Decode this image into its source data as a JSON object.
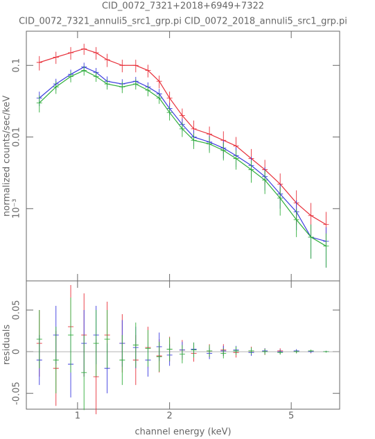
{
  "chart_data": [
    {
      "type": "scatter",
      "title": "CID_0072_7321+2018+6949+7322",
      "subtitle": "CID_0072_7321_annuli5_src1_grp.pi CID_0072_2018_annuli5_src1_grp.pi",
      "ylabel": "normalized counts/sec/keV",
      "xlog": true,
      "ylog": true,
      "xlim": [
        0.68,
        7.2
      ],
      "ylim": [
        9.8e-05,
        0.3
      ],
      "yticks": [
        0.1,
        0.01,
        {
          "value": 0.001,
          "label": "10⁻³"
        }
      ],
      "x": [
        0.75,
        0.85,
        0.95,
        1.05,
        1.15,
        1.25,
        1.4,
        1.55,
        1.7,
        1.85,
        2.0,
        2.2,
        2.4,
        2.7,
        3.0,
        3.3,
        3.7,
        4.1,
        4.6,
        5.2,
        5.8,
        6.5
      ],
      "series": [
        {
          "color": "#e8303a",
          "values": [
            0.11,
            0.13,
            0.15,
            0.17,
            0.15,
            0.12,
            0.1,
            0.1,
            0.085,
            0.06,
            0.035,
            0.02,
            0.013,
            0.011,
            0.009,
            0.0075,
            0.005,
            0.0035,
            0.0022,
            0.0012,
            0.0008,
            0.0006
          ],
          "errors": [
            0.025,
            0.025,
            0.03,
            0.03,
            0.03,
            0.025,
            0.02,
            0.02,
            0.017,
            0.012,
            0.008,
            0.005,
            0.004,
            0.003,
            0.003,
            0.0025,
            0.0018,
            0.0013,
            0.0009,
            0.0006,
            0.0004,
            0.0003
          ]
        },
        {
          "color": "#3a3adf",
          "values": [
            0.035,
            0.055,
            0.075,
            0.095,
            0.08,
            0.06,
            0.055,
            0.06,
            0.05,
            0.04,
            0.025,
            0.015,
            0.01,
            0.0085,
            0.007,
            0.0055,
            0.004,
            0.0028,
            0.0016,
            0.0009,
            0.0004,
            0.00035
          ],
          "errors": [
            0.008,
            0.01,
            0.012,
            0.014,
            0.012,
            0.01,
            0.009,
            0.009,
            0.008,
            0.007,
            0.005,
            0.003,
            0.0025,
            0.002,
            0.002,
            0.0017,
            0.0013,
            0.001,
            0.0006,
            0.0004,
            0.0002,
            0.0002
          ]
        },
        {
          "color": "#2fae3a",
          "values": [
            0.03,
            0.05,
            0.07,
            0.085,
            0.07,
            0.055,
            0.05,
            0.055,
            0.045,
            0.035,
            0.022,
            0.013,
            0.009,
            0.008,
            0.0065,
            0.005,
            0.0035,
            0.0025,
            0.0014,
            0.0007,
            0.0004,
            0.0003
          ],
          "errors": [
            0.008,
            0.01,
            0.012,
            0.013,
            0.011,
            0.009,
            0.009,
            0.009,
            0.008,
            0.006,
            0.005,
            0.003,
            0.0022,
            0.002,
            0.0018,
            0.0015,
            0.0012,
            0.0009,
            0.0006,
            0.0003,
            0.0002,
            0.00015
          ]
        }
      ]
    },
    {
      "type": "scatter",
      "ylabel": "residuals",
      "xlabel": "channel energy (keV)",
      "xlog": true,
      "ylog": false,
      "xlim": [
        0.68,
        7.2
      ],
      "ylim": [
        -0.069,
        0.085
      ],
      "xticks": [
        1,
        2,
        5
      ],
      "yticks": [
        0.05,
        0,
        -0.05
      ],
      "x": [
        0.75,
        0.85,
        0.95,
        1.05,
        1.15,
        1.25,
        1.4,
        1.55,
        1.7,
        1.85,
        2.0,
        2.2,
        2.4,
        2.7,
        3.0,
        3.3,
        3.7,
        4.1,
        4.6,
        5.2,
        5.8,
        6.5
      ],
      "series": [
        {
          "color": "#e8303a",
          "values": [
            0.01,
            -0.02,
            0.03,
            0.02,
            -0.03,
            0.02,
            0.01,
            -0.01,
            0.005,
            -0.005,
            0.003,
            0.002,
            -0.002,
            0.001,
            0.002,
            -0.001,
            0.001,
            0,
            0.001,
            0,
            0,
            0
          ],
          "errors": [
            0.04,
            0.045,
            0.05,
            0.05,
            0.045,
            0.04,
            0.035,
            0.03,
            0.025,
            0.02,
            0.015,
            0.012,
            0.01,
            0.008,
            0.007,
            0.006,
            0.005,
            0.004,
            0.003,
            0.002,
            0.002,
            0.001
          ]
        },
        {
          "color": "#3a3adf",
          "values": [
            -0.01,
            0.02,
            -0.015,
            0.01,
            0.02,
            -0.02,
            0.01,
            0.005,
            -0.01,
            0.006,
            -0.004,
            0.002,
            0.003,
            -0.002,
            0.001,
            0.002,
            -0.001,
            0.001,
            0,
            0.001,
            0,
            0
          ],
          "errors": [
            0.03,
            0.035,
            0.04,
            0.04,
            0.035,
            0.03,
            0.028,
            0.025,
            0.02,
            0.017,
            0.013,
            0.01,
            0.008,
            0.007,
            0.006,
            0.005,
            0.004,
            0.003,
            0.0025,
            0.002,
            0.0015,
            0.001
          ]
        },
        {
          "color": "#2fae3a",
          "values": [
            0.015,
            -0.01,
            0.02,
            -0.025,
            0.01,
            0.015,
            -0.01,
            0.008,
            0.004,
            -0.006,
            0.003,
            -0.003,
            0.002,
            0.001,
            -0.002,
            0.001,
            0.001,
            0,
            -0.001,
            0,
            0.001,
            0
          ],
          "errors": [
            0.035,
            0.04,
            0.045,
            0.045,
            0.04,
            0.035,
            0.03,
            0.027,
            0.022,
            0.018,
            0.014,
            0.011,
            0.009,
            0.007,
            0.006,
            0.005,
            0.004,
            0.0035,
            0.0025,
            0.002,
            0.0015,
            0.001
          ]
        }
      ]
    }
  ]
}
